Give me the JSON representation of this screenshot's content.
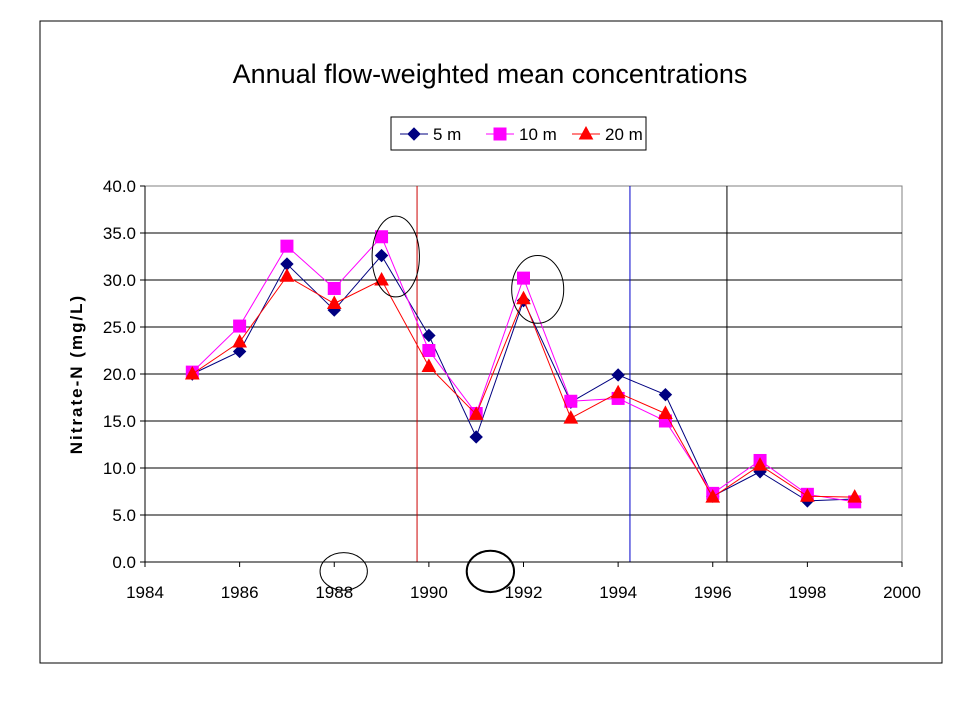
{
  "chart_data": {
    "type": "line",
    "title": "Annual flow-weighted mean concentrations",
    "xlabel": "",
    "ylabel": "Nitrate-N (mg/L)",
    "xlim": [
      1984,
      2000
    ],
    "ylim": [
      0,
      40
    ],
    "x_ticks": [
      "1984",
      "1986",
      "1988",
      "1990",
      "1992",
      "1994",
      "1996",
      "1998",
      "2000"
    ],
    "y_ticks": [
      "0.0",
      "5.0",
      "10.0",
      "15.0",
      "20.0",
      "25.0",
      "30.0",
      "35.0",
      "40.0"
    ],
    "grid": "horizontal",
    "legend_position": "top-center",
    "x": [
      1985,
      1986,
      1987,
      1988,
      1989,
      1990,
      1991,
      1992,
      1993,
      1994,
      1995,
      1996,
      1997,
      1998,
      1999
    ],
    "series": [
      {
        "name": "5 m",
        "color": "#000080",
        "marker": "diamond",
        "values": [
          20.0,
          22.4,
          31.7,
          26.8,
          32.6,
          24.1,
          13.3,
          27.8,
          17.0,
          19.9,
          17.8,
          7.0,
          9.6,
          6.5,
          6.7
        ]
      },
      {
        "name": "10 m",
        "color": "#ff00ff",
        "marker": "square",
        "values": [
          20.2,
          25.1,
          33.6,
          29.1,
          34.6,
          22.5,
          15.8,
          30.2,
          17.1,
          17.4,
          15.0,
          7.3,
          10.8,
          7.2,
          6.4
        ]
      },
      {
        "name": "20 m",
        "color": "#ff0000",
        "marker": "triangle",
        "values": [
          20.0,
          23.4,
          30.4,
          27.5,
          30.0,
          20.8,
          15.7,
          28.0,
          15.3,
          18.0,
          15.8,
          6.9,
          10.3,
          7.0,
          6.9
        ]
      }
    ],
    "vertical_lines": [
      {
        "x": 1989.75,
        "color": "#cc0000"
      },
      {
        "x": 1994.25,
        "color": "#0000cc"
      },
      {
        "x": 1996.3,
        "color": "#000000"
      }
    ],
    "annotation_ellipses": [
      {
        "cx": 1989.3,
        "cy": 32.5,
        "rx_years": 0.5,
        "ry_units": 4.3,
        "stroke_width": 1
      },
      {
        "cx": 1992.3,
        "cy": 29.0,
        "rx_years": 0.55,
        "ry_units": 3.6,
        "stroke_width": 1
      },
      {
        "cx": 1988.2,
        "cy": -1.0,
        "rx_years": 0.5,
        "ry_units": 2.0,
        "stroke_width": 1
      },
      {
        "cx": 1991.3,
        "cy": -1.0,
        "rx_years": 0.5,
        "ry_units": 2.2,
        "stroke_width": 2
      }
    ]
  }
}
